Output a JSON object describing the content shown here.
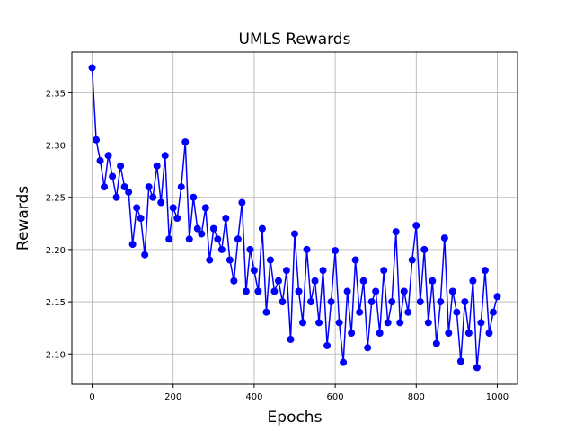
{
  "chart_data": {
    "type": "line",
    "title": "UMLS Rewards",
    "x_label": "Epochs",
    "y_label": "Rewards",
    "x": [
      0,
      10,
      20,
      30,
      40,
      50,
      60,
      70,
      80,
      90,
      100,
      110,
      120,
      130,
      140,
      150,
      160,
      170,
      180,
      190,
      200,
      210,
      220,
      230,
      240,
      250,
      260,
      270,
      280,
      290,
      300,
      310,
      320,
      330,
      340,
      350,
      360,
      370,
      380,
      390,
      400,
      410,
      420,
      430,
      440,
      450,
      460,
      470,
      480,
      490,
      500,
      510,
      520,
      530,
      540,
      550,
      560,
      570,
      580,
      590,
      600,
      610,
      620,
      630,
      640,
      650,
      660,
      670,
      680,
      690,
      700,
      710,
      720,
      730,
      740,
      750,
      760,
      770,
      780,
      790,
      800,
      810,
      820,
      830,
      840,
      850,
      860,
      870,
      880,
      890,
      900,
      910,
      920,
      930,
      940,
      950,
      960,
      970,
      980,
      990,
      1000
    ],
    "series": [
      {
        "name": "Rewards",
        "color": "#0000ff",
        "marker": "o",
        "values": [
          2.374,
          2.305,
          2.285,
          2.26,
          2.29,
          2.27,
          2.25,
          2.28,
          2.26,
          2.255,
          2.205,
          2.24,
          2.23,
          2.195,
          2.26,
          2.25,
          2.28,
          2.245,
          2.29,
          2.21,
          2.24,
          2.23,
          2.26,
          2.303,
          2.21,
          2.25,
          2.22,
          2.215,
          2.24,
          2.19,
          2.22,
          2.21,
          2.2,
          2.23,
          2.19,
          2.17,
          2.21,
          2.245,
          2.16,
          2.2,
          2.18,
          2.16,
          2.22,
          2.14,
          2.19,
          2.16,
          2.17,
          2.15,
          2.18,
          2.114,
          2.215,
          2.16,
          2.13,
          2.2,
          2.15,
          2.17,
          2.13,
          2.18,
          2.108,
          2.15,
          2.199,
          2.13,
          2.092,
          2.16,
          2.12,
          2.19,
          2.14,
          2.17,
          2.106,
          2.15,
          2.16,
          2.12,
          2.18,
          2.13,
          2.15,
          2.217,
          2.13,
          2.16,
          2.14,
          2.19,
          2.223,
          2.15,
          2.2,
          2.13,
          2.17,
          2.11,
          2.15,
          2.211,
          2.12,
          2.16,
          2.14,
          2.093,
          2.15,
          2.12,
          2.17,
          2.087,
          2.13,
          2.18,
          2.12,
          2.14,
          2.155
        ]
      }
    ],
    "xlim": [
      -50,
      1050
    ],
    "ylim": [
      2.071,
      2.389
    ],
    "xticks": [
      0,
      200,
      400,
      600,
      800,
      1000
    ],
    "yticks": [
      {
        "value": 2.1,
        "label": "2.10"
      },
      2.15,
      {
        "value": 2.2,
        "label": "2.20"
      },
      2.25,
      {
        "value": 2.3,
        "label": "2.30"
      },
      2.35
    ],
    "grid": true
  }
}
